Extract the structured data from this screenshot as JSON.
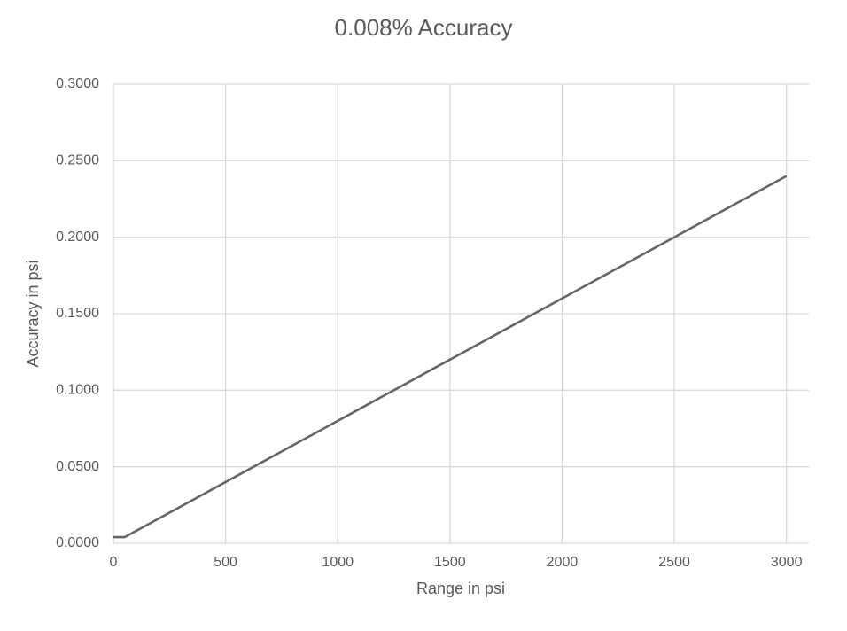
{
  "chart_data": {
    "type": "line",
    "title": "0.008% Accuracy",
    "x_label": "Range in psi",
    "y_label": "Accuracy in psi",
    "x": [
      0,
      50,
      3000
    ],
    "values": [
      0.004,
      0.004,
      0.24
    ],
    "color": "#666666",
    "xlim": [
      0,
      3100
    ],
    "xticks": [
      0,
      500,
      1000,
      1500,
      2000,
      2500,
      3000
    ],
    "ylim": [
      0,
      0.3
    ],
    "yticks": [
      {
        "value": 0,
        "label": "0.0000"
      },
      {
        "value": 0.05,
        "label": "0.0500"
      },
      {
        "value": 0.1,
        "label": "0.1000"
      },
      {
        "value": 0.15,
        "label": "0.1500"
      },
      {
        "value": 0.2,
        "label": "0.2000"
      },
      {
        "value": 0.25,
        "label": "0.2500"
      },
      {
        "value": 0.3,
        "label": "0.3000"
      }
    ],
    "grid": true
  }
}
